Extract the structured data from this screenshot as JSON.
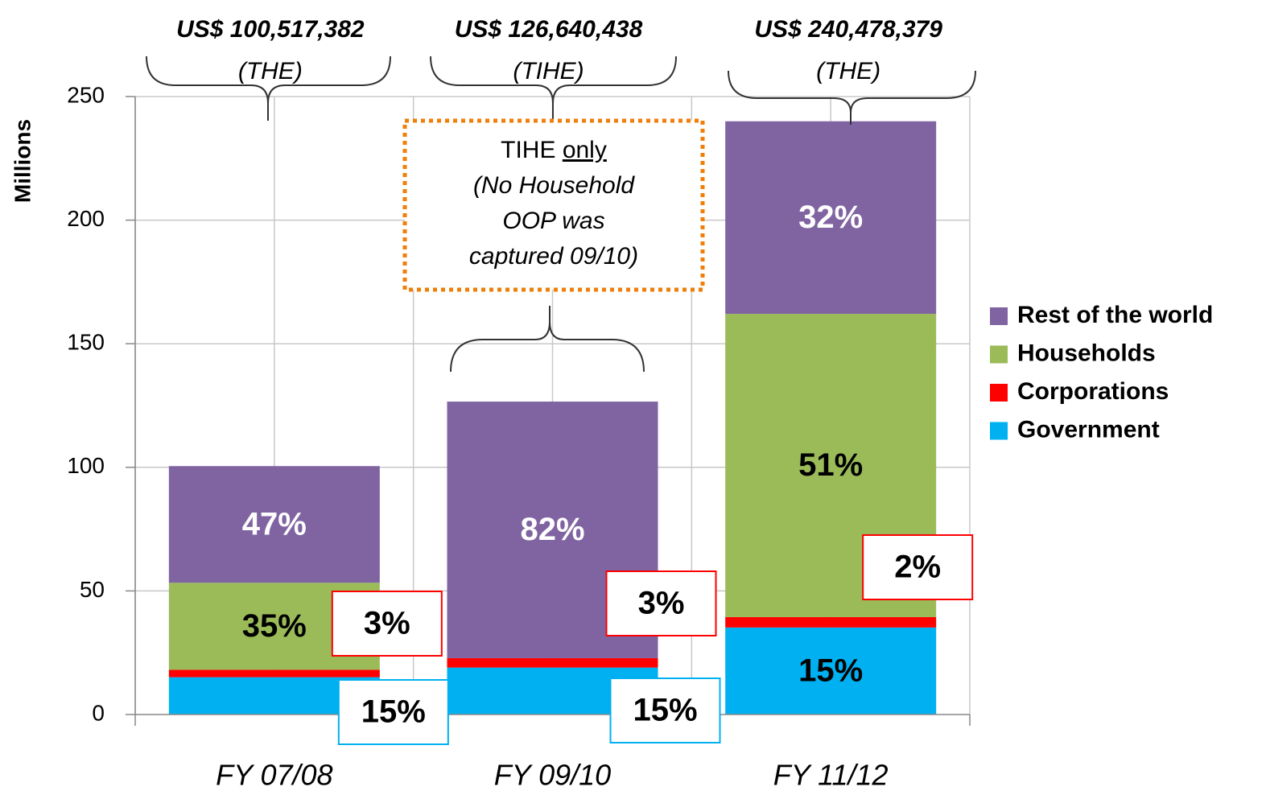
{
  "chart_data": {
    "type": "stacked_bar",
    "y_label": "Millions",
    "categories": [
      "FY 07/08",
      "FY 09/10",
      "FY 11/12"
    ],
    "series": [
      {
        "name": "Government",
        "color": "#00b0f0",
        "values": [
          15.1,
          19.0,
          35.2
        ],
        "percent_labels": [
          "15%",
          "15%",
          "15%"
        ]
      },
      {
        "name": "Corporations",
        "color": "#ff0000",
        "values": [
          3.0,
          3.8,
          4.2
        ],
        "percent_labels": [
          "3%",
          "3%",
          "2%"
        ]
      },
      {
        "name": "Households",
        "color": "#9bbb59",
        "values": [
          35.2,
          0,
          122.7
        ],
        "percent_labels": [
          "35%",
          null,
          "51%"
        ]
      },
      {
        "name": "Rest of the world",
        "color": "#8064a2",
        "values": [
          47.2,
          103.8,
          77.9
        ],
        "percent_labels": [
          "47%",
          "82%",
          "32%"
        ]
      }
    ],
    "totals": [
      {
        "amount": "US$ 100,517,382",
        "measure": "(THE)"
      },
      {
        "amount": "US$ 126,640,438",
        "measure": "(TIHE)"
      },
      {
        "amount": "US$ 240,478,379",
        "measure": "(THE)"
      }
    ],
    "note": {
      "first": "TIHE",
      "underlined": "only",
      "lines": [
        "(No Household",
        "OOP was",
        "captured 09/10)"
      ]
    },
    "ylim": [
      0,
      250
    ],
    "yticks": [
      0,
      50,
      100,
      150,
      200,
      250
    ],
    "grid": true,
    "legend": "right"
  }
}
